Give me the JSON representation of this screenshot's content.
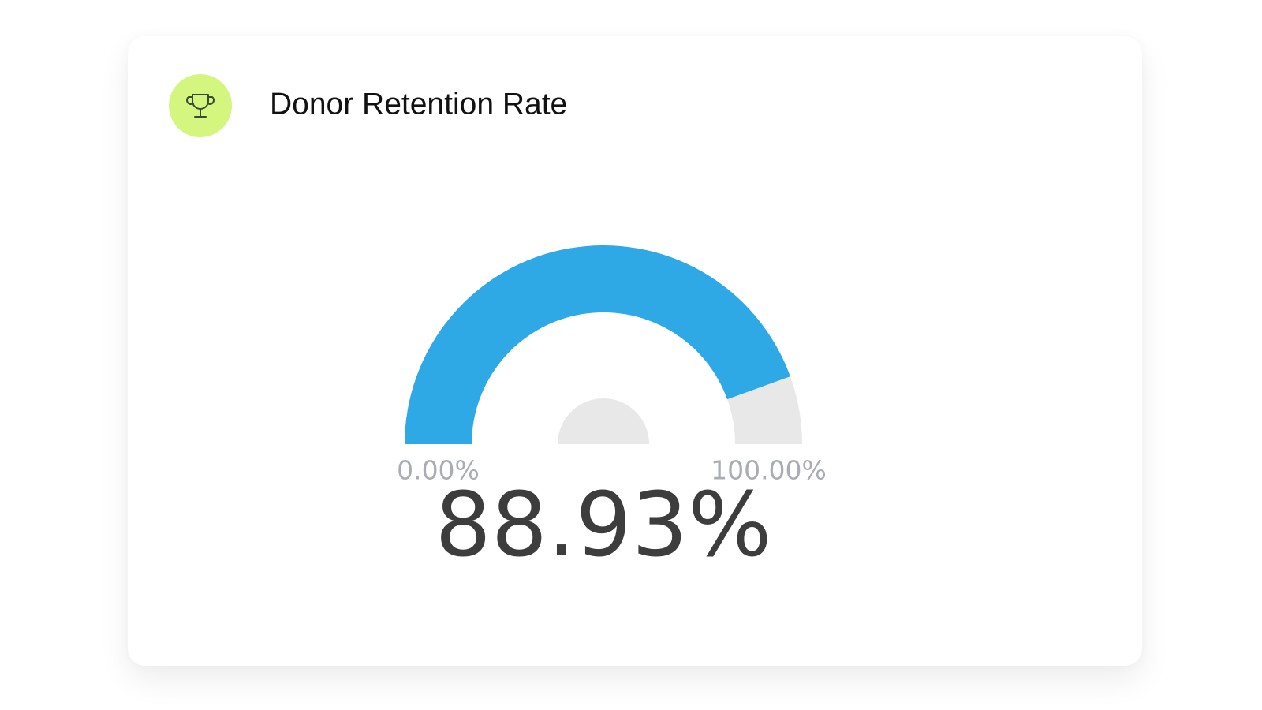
{
  "chart_data": {
    "type": "gauge",
    "title": "Donor Retention Rate",
    "values": [
      88.93
    ],
    "value_labels": [
      "88.93%"
    ],
    "ylim": [
      0,
      100
    ],
    "yticks": [
      {
        "value": 0,
        "label": "0.00%"
      },
      {
        "value": 100,
        "label": "100.00%"
      }
    ],
    "color": "#2fa8e6",
    "track_color": "#e8e8e8"
  }
}
